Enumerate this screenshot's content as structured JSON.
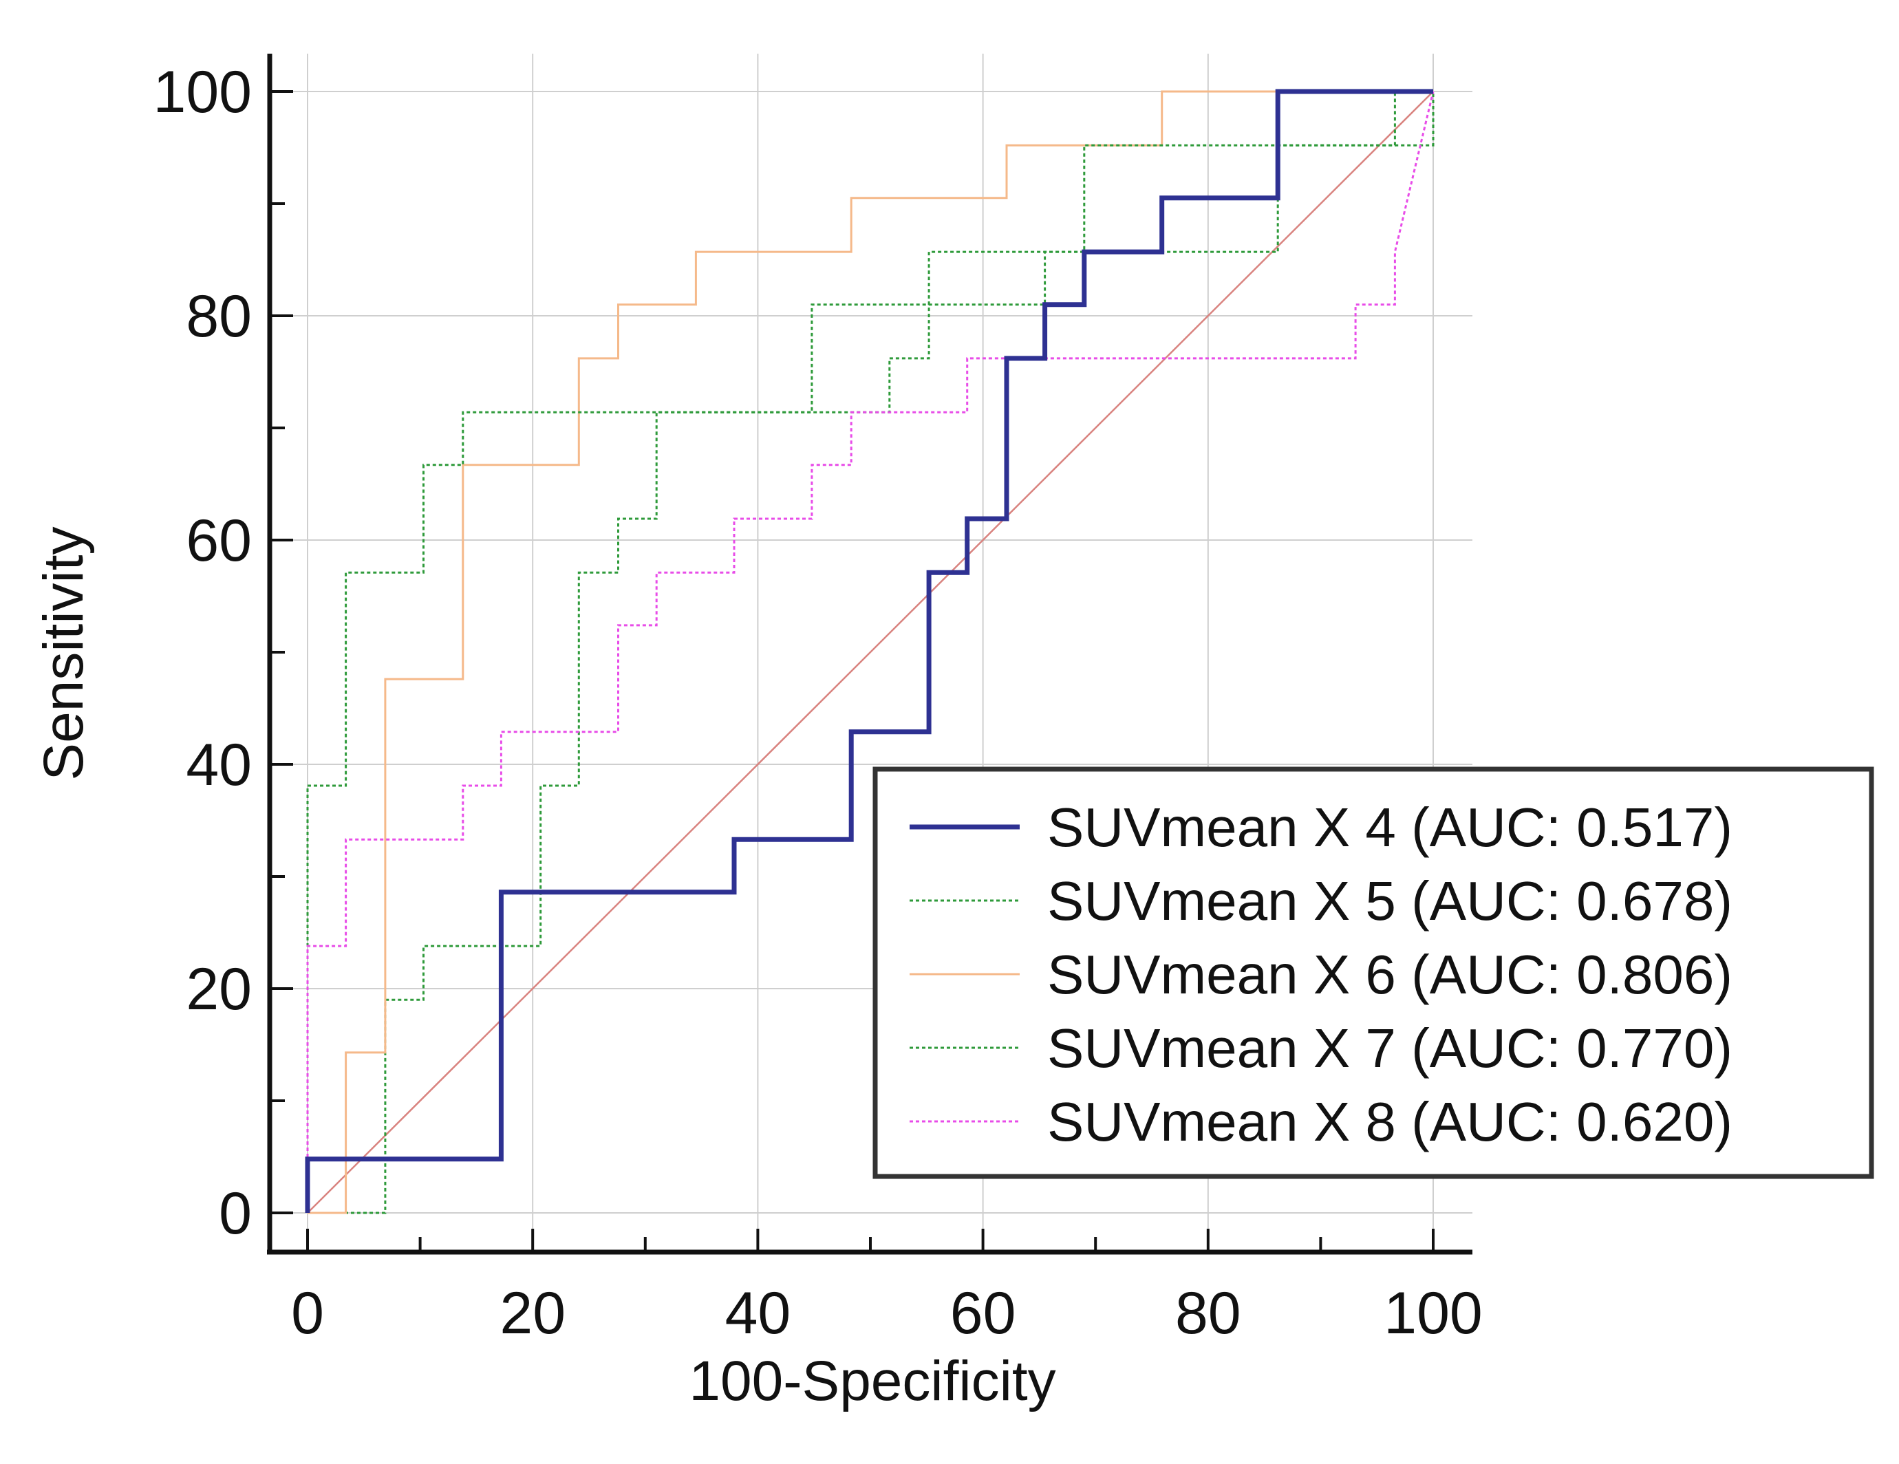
{
  "chart_data": {
    "type": "line",
    "title": "",
    "xlabel": "100-Specificity",
    "ylabel": "Sensitivity",
    "xlim": [
      0,
      100
    ],
    "ylim": [
      0,
      100
    ],
    "x_ticks": [
      "0",
      "20",
      "40",
      "60",
      "80",
      "100"
    ],
    "y_ticks": [
      "0",
      "20",
      "40",
      "60",
      "80",
      "100"
    ],
    "grid": true,
    "legend_position": "bottom-right",
    "reference_line": {
      "name": "diagonal",
      "color": "#d9837f",
      "points": [
        [
          0,
          0
        ],
        [
          100,
          100
        ]
      ]
    },
    "series": [
      {
        "name": "SUVmean X 4 (AUC: 0.517)",
        "color": "#2e3192",
        "style": "solid-thick",
        "points": [
          [
            0,
            0
          ],
          [
            0,
            4.8
          ],
          [
            17.2,
            4.8
          ],
          [
            17.2,
            28.6
          ],
          [
            37.9,
            28.6
          ],
          [
            37.9,
            33.3
          ],
          [
            48.3,
            33.3
          ],
          [
            48.3,
            42.9
          ],
          [
            55.2,
            42.9
          ],
          [
            55.2,
            57.1
          ],
          [
            58.6,
            57.1
          ],
          [
            58.6,
            61.9
          ],
          [
            62.1,
            61.9
          ],
          [
            62.1,
            76.2
          ],
          [
            65.5,
            76.2
          ],
          [
            65.5,
            81
          ],
          [
            69,
            81
          ],
          [
            69,
            85.7
          ],
          [
            75.9,
            85.7
          ],
          [
            75.9,
            90.5
          ],
          [
            86.2,
            90.5
          ],
          [
            86.2,
            100
          ],
          [
            100,
            100
          ]
        ]
      },
      {
        "name": "SUVmean X 5 (AUC: 0.678)",
        "color": "#2e9a3a",
        "style": "dotted",
        "points": [
          [
            0,
            0
          ],
          [
            6.9,
            0
          ],
          [
            6.9,
            19
          ],
          [
            10.3,
            19
          ],
          [
            10.3,
            23.8
          ],
          [
            20.7,
            23.8
          ],
          [
            20.7,
            38.1
          ],
          [
            24.1,
            38.1
          ],
          [
            24.1,
            57.1
          ],
          [
            27.6,
            57.1
          ],
          [
            27.6,
            61.9
          ],
          [
            31,
            61.9
          ],
          [
            31,
            71.4
          ],
          [
            51.7,
            71.4
          ],
          [
            51.7,
            76.2
          ],
          [
            55.2,
            76.2
          ],
          [
            55.2,
            85.7
          ],
          [
            86.2,
            85.7
          ],
          [
            86.2,
            95.2
          ],
          [
            100,
            95.2
          ],
          [
            100,
            100
          ]
        ]
      },
      {
        "name": "SUVmean X 6 (AUC: 0.806)",
        "color": "#f5b98a",
        "style": "solid-thin",
        "points": [
          [
            0,
            0
          ],
          [
            3.4,
            0
          ],
          [
            3.4,
            14.3
          ],
          [
            6.9,
            14.3
          ],
          [
            6.9,
            47.6
          ],
          [
            13.8,
            47.6
          ],
          [
            13.8,
            66.7
          ],
          [
            24.1,
            66.7
          ],
          [
            24.1,
            76.2
          ],
          [
            27.6,
            76.2
          ],
          [
            27.6,
            81
          ],
          [
            34.5,
            81
          ],
          [
            34.5,
            85.7
          ],
          [
            48.3,
            85.7
          ],
          [
            48.3,
            90.5
          ],
          [
            62.1,
            90.5
          ],
          [
            62.1,
            95.2
          ],
          [
            75.9,
            95.2
          ],
          [
            75.9,
            100
          ],
          [
            100,
            100
          ]
        ]
      },
      {
        "name": "SUVmean X 7 (AUC: 0.770)",
        "color": "#2e9a3a",
        "style": "dotted",
        "points": [
          [
            0,
            0
          ],
          [
            0,
            38.1
          ],
          [
            3.4,
            38.1
          ],
          [
            3.4,
            57.1
          ],
          [
            10.3,
            57.1
          ],
          [
            10.3,
            66.7
          ],
          [
            13.8,
            66.7
          ],
          [
            13.8,
            71.4
          ],
          [
            44.8,
            71.4
          ],
          [
            44.8,
            81
          ],
          [
            65.5,
            81
          ],
          [
            65.5,
            85.7
          ],
          [
            69,
            85.7
          ],
          [
            69,
            95.2
          ],
          [
            96.6,
            95.2
          ],
          [
            96.6,
            100
          ],
          [
            100,
            100
          ]
        ]
      },
      {
        "name": "SUVmean X 8 (AUC: 0.620)",
        "color": "#e84ce8",
        "style": "dotted",
        "points": [
          [
            0,
            0
          ],
          [
            0,
            23.8
          ],
          [
            3.4,
            23.8
          ],
          [
            3.4,
            33.3
          ],
          [
            13.8,
            33.3
          ],
          [
            13.8,
            38.1
          ],
          [
            17.2,
            38.1
          ],
          [
            17.2,
            42.9
          ],
          [
            27.6,
            42.9
          ],
          [
            27.6,
            52.4
          ],
          [
            31,
            52.4
          ],
          [
            31,
            57.1
          ],
          [
            37.9,
            57.1
          ],
          [
            37.9,
            61.9
          ],
          [
            44.8,
            61.9
          ],
          [
            44.8,
            66.7
          ],
          [
            48.3,
            66.7
          ],
          [
            48.3,
            71.4
          ],
          [
            58.6,
            71.4
          ],
          [
            58.6,
            76.2
          ],
          [
            93.1,
            76.2
          ],
          [
            93.1,
            81
          ],
          [
            96.6,
            81
          ],
          [
            96.6,
            85.7
          ],
          [
            100,
            100
          ]
        ]
      }
    ]
  }
}
